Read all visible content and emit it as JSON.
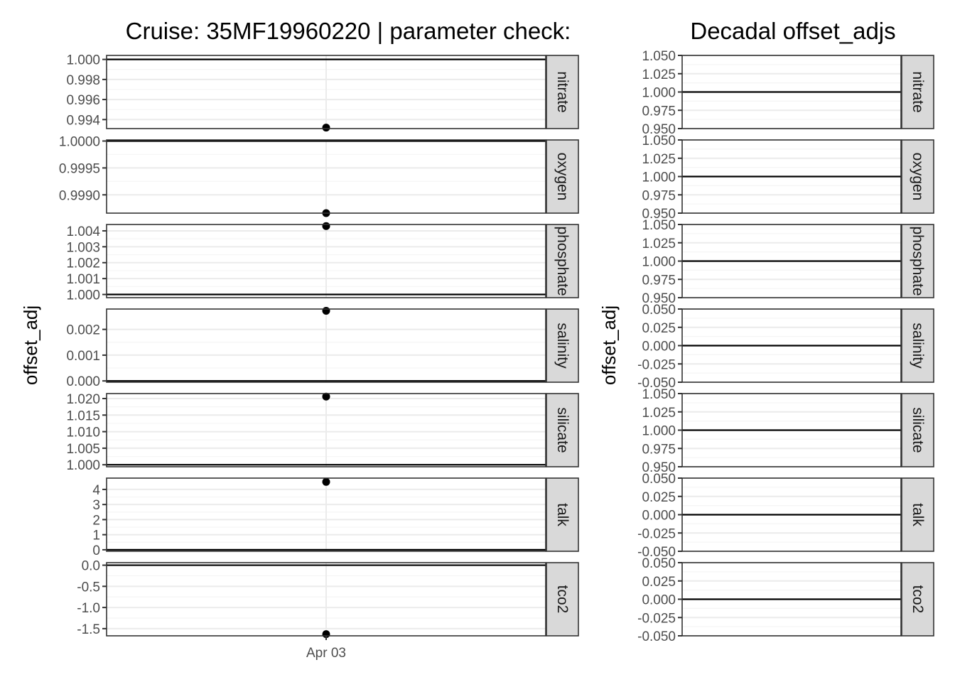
{
  "chart_data": [
    {
      "type": "scatter",
      "title": "Cruise: 35MF19960220 | parameter check:",
      "ylabel": "offset_adj",
      "x_tick_labels": [
        "Apr 03"
      ],
      "reference_line": "horizontal line per facet",
      "grid": true,
      "facets": [
        {
          "label": "nitrate",
          "point": {
            "x": "Apr 03",
            "y": 0.9932
          },
          "hline": 1.0,
          "ylim": [
            0.9931,
            1.0004
          ],
          "ticks": [
            1.0,
            0.998,
            0.996,
            0.994
          ],
          "tick_labels": [
            "1.000",
            "0.998",
            "0.996",
            "0.994"
          ]
        },
        {
          "label": "oxygen",
          "point": {
            "x": "Apr 03",
            "y": 0.99866
          },
          "hline": 1.0,
          "ylim": [
            0.99866,
            1.00002
          ],
          "ticks": [
            1.0,
            0.9995,
            0.999
          ],
          "tick_labels": [
            "1.0000",
            "0.9995",
            "0.9990"
          ]
        },
        {
          "label": "phosphate",
          "point": {
            "x": "Apr 03",
            "y": 1.0043
          },
          "hline": 1.0,
          "ylim": [
            0.9998,
            1.0044
          ],
          "ticks": [
            1.004,
            1.003,
            1.002,
            1.001,
            1.0
          ],
          "tick_labels": [
            "1.004",
            "1.003",
            "1.002",
            "1.001",
            "1.000"
          ]
        },
        {
          "label": "salinity",
          "point": {
            "x": "Apr 03",
            "y": 0.00272
          },
          "hline": 0.0,
          "ylim": [
            -5e-05,
            0.00279
          ],
          "ticks": [
            0.002,
            0.001,
            0.0
          ],
          "tick_labels": [
            "0.002",
            "0.001",
            "0.000"
          ]
        },
        {
          "label": "silicate",
          "point": {
            "x": "Apr 03",
            "y": 1.0206
          },
          "hline": 1.0,
          "ylim": [
            0.9994,
            1.0215
          ],
          "ticks": [
            1.02,
            1.015,
            1.01,
            1.005,
            1.0
          ],
          "tick_labels": [
            "1.020",
            "1.015",
            "1.010",
            "1.005",
            "1.000"
          ]
        },
        {
          "label": "talk",
          "point": {
            "x": "Apr 03",
            "y": 4.5
          },
          "hline": 0.0,
          "ylim": [
            -0.1,
            4.75
          ],
          "ticks": [
            4,
            3,
            2,
            1,
            0
          ],
          "tick_labels": [
            "4",
            "3",
            "2",
            "1",
            "0"
          ]
        },
        {
          "label": "tco2",
          "point": {
            "x": "Apr 03",
            "y": -1.63
          },
          "hline": 0.0,
          "ylim": [
            -1.67,
            0.06
          ],
          "ticks": [
            0.0,
            -0.5,
            -1.0,
            -1.5
          ],
          "tick_labels": [
            "0.0",
            "-0.5",
            "-1.0",
            "-1.5"
          ]
        }
      ]
    },
    {
      "type": "line",
      "title": "Decadal offset_adjs",
      "ylabel": "offset_adj",
      "grid": true,
      "facets": [
        {
          "label": "nitrate",
          "hline": 1.0,
          "ylim": [
            0.95,
            1.05
          ],
          "ticks": [
            1.05,
            1.025,
            1.0,
            0.975,
            0.95
          ],
          "tick_labels": [
            "1.050",
            "1.025",
            "1.000",
            "0.975",
            "0.950"
          ]
        },
        {
          "label": "oxygen",
          "hline": 1.0,
          "ylim": [
            0.95,
            1.05
          ],
          "ticks": [
            1.05,
            1.025,
            1.0,
            0.975,
            0.95
          ],
          "tick_labels": [
            "1.050",
            "1.025",
            "1.000",
            "0.975",
            "0.950"
          ]
        },
        {
          "label": "phosphate",
          "hline": 1.0,
          "ylim": [
            0.95,
            1.05
          ],
          "ticks": [
            1.05,
            1.025,
            1.0,
            0.975,
            0.95
          ],
          "tick_labels": [
            "1.050",
            "1.025",
            "1.000",
            "0.975",
            "0.950"
          ]
        },
        {
          "label": "salinity",
          "hline": 0.0,
          "ylim": [
            -0.05,
            0.05
          ],
          "ticks": [
            0.05,
            0.025,
            0.0,
            -0.025,
            -0.05
          ],
          "tick_labels": [
            "0.050",
            "0.025",
            "0.000",
            "-0.025",
            "-0.050"
          ]
        },
        {
          "label": "silicate",
          "hline": 1.0,
          "ylim": [
            0.95,
            1.05
          ],
          "ticks": [
            1.05,
            1.025,
            1.0,
            0.975,
            0.95
          ],
          "tick_labels": [
            "1.050",
            "1.025",
            "1.000",
            "0.975",
            "0.950"
          ]
        },
        {
          "label": "talk",
          "hline": 0.0,
          "ylim": [
            -0.05,
            0.05
          ],
          "ticks": [
            0.05,
            0.025,
            0.0,
            -0.025,
            -0.05
          ],
          "tick_labels": [
            "0.050",
            "0.025",
            "0.000",
            "-0.025",
            "-0.050"
          ]
        },
        {
          "label": "tco2",
          "hline": 0.0,
          "ylim": [
            -0.05,
            0.05
          ],
          "ticks": [
            0.05,
            0.025,
            0.0,
            -0.025,
            -0.05
          ],
          "tick_labels": [
            "0.050",
            "0.025",
            "0.000",
            "-0.025",
            "-0.050"
          ]
        }
      ]
    }
  ],
  "colors": {
    "panel_border": "#333333",
    "strip_fill": "#d9d9d9",
    "grid_major": "#ebebeb",
    "grid_minor": "#f5f5f5",
    "point": "#000000",
    "line": "#000000"
  }
}
